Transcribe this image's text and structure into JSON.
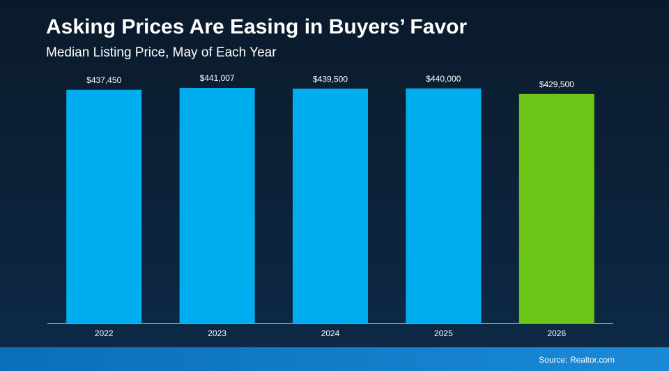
{
  "chart_data": {
    "type": "bar",
    "title": "Asking Prices Are Easing in Buyers’ Favor",
    "subtitle": "Median Listing Price, May of Each Year",
    "categories": [
      "2022",
      "2023",
      "2024",
      "2025",
      "2026"
    ],
    "values": [
      437450,
      441007,
      439500,
      440000,
      429500
    ],
    "value_labels": [
      "$437,450",
      "$441,007",
      "$439,500",
      "$440,000",
      "$429,500"
    ],
    "colors": [
      "#00aeef",
      "#00aeef",
      "#00aeef",
      "#00aeef",
      "#6cc417"
    ],
    "source": "Source: Realtor.com"
  }
}
